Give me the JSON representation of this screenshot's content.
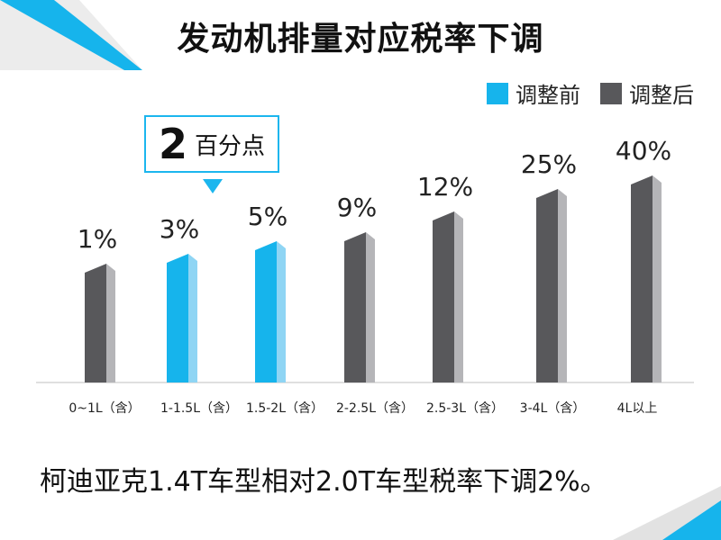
{
  "title": "发动机排量对应税率下调",
  "legend": {
    "before_label": "调整前",
    "after_label": "调整后",
    "before_color": "#16b4ec",
    "after_color": "#58585b"
  },
  "callout": {
    "number": "2",
    "text": "百分点"
  },
  "note": "柯迪亚克1.4T车型相对2.0T车型税率下调2%。",
  "chart_data": {
    "type": "bar",
    "title": "发动机排量对应税率下调",
    "categories": [
      "0~1L（含）",
      "1-1.5L（含）",
      "1.5-2L（含）",
      "2-2.5L（含）",
      "2.5-3L（含）",
      "3-4L（含）",
      "4L以上"
    ],
    "values": [
      1,
      3,
      5,
      9,
      12,
      25,
      40
    ],
    "value_labels": [
      "1%",
      "3%",
      "5%",
      "9%",
      "12%",
      "25%",
      "40%"
    ],
    "highlight": [
      false,
      true,
      true,
      false,
      false,
      false,
      false
    ],
    "series": [
      {
        "name": "调整前",
        "color": "#16b4ec"
      },
      {
        "name": "调整后",
        "color": "#58585b"
      }
    ],
    "legend_position": "top-right",
    "grid": false
  }
}
